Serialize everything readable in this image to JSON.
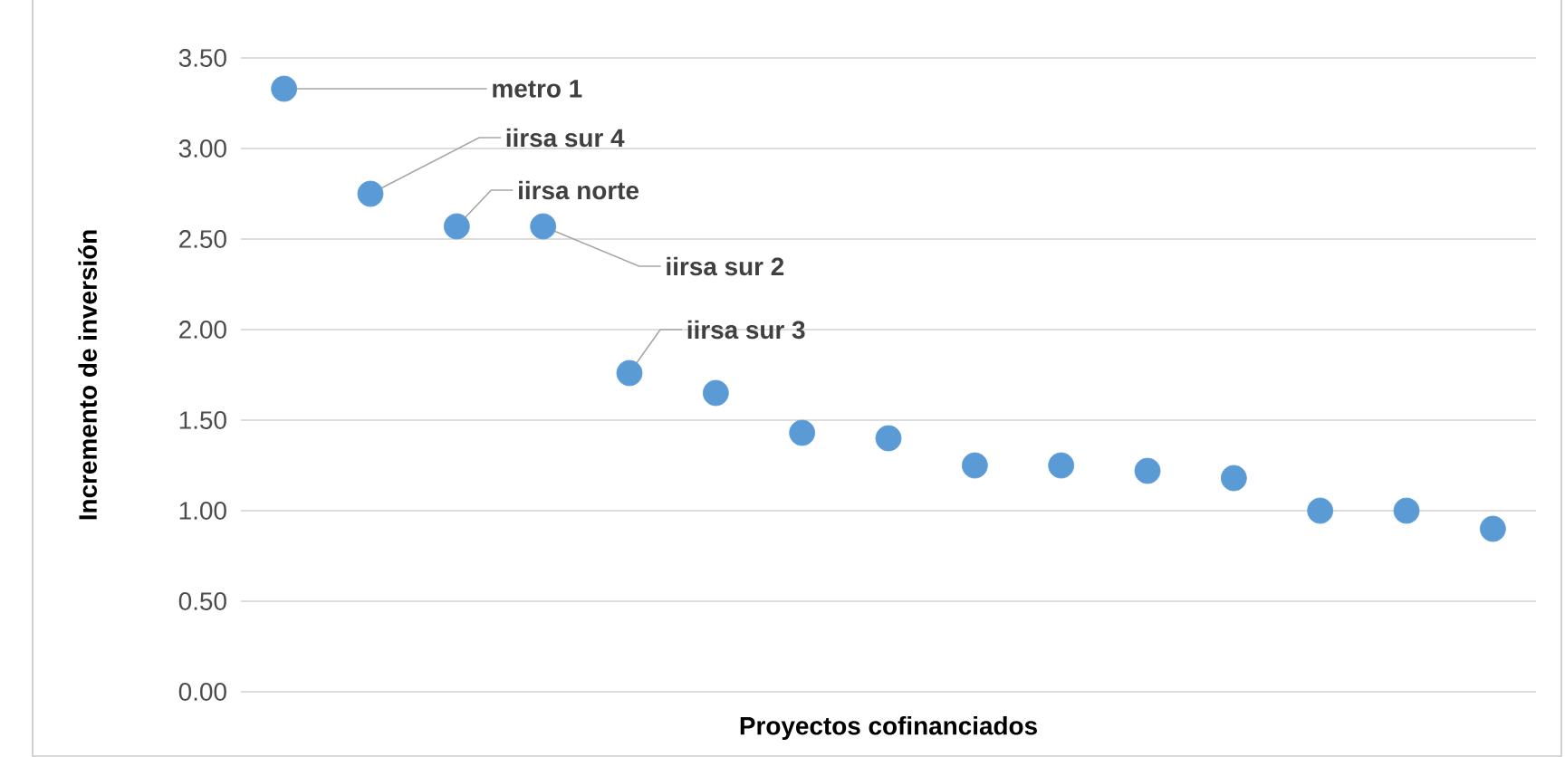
{
  "chart_data": {
    "type": "scatter",
    "xlabel": "Proyectos cofinanciados",
    "ylabel": "Incremento de inversión",
    "categories": [
      null,
      null,
      null,
      null,
      null,
      null,
      null,
      null,
      null,
      null,
      null,
      null,
      null,
      null,
      null
    ],
    "values": [
      3.33,
      2.75,
      2.57,
      2.57,
      1.76,
      1.65,
      1.43,
      1.4,
      1.25,
      1.25,
      1.22,
      1.18,
      1.0,
      1.0,
      0.9
    ],
    "color": "#5b9bd5",
    "marker": "circle",
    "ylim": [
      0,
      3.5
    ],
    "yticks": [
      {
        "value": 0,
        "label": "0.00"
      },
      {
        "value": 0.5,
        "label": "0.50"
      },
      {
        "value": 1,
        "label": "1.00"
      },
      {
        "value": 1.5,
        "label": "1.50"
      },
      {
        "value": 2,
        "label": "2.00"
      },
      {
        "value": 2.5,
        "label": "2.50"
      },
      {
        "value": 3,
        "label": "3.00"
      },
      {
        "value": 3.5,
        "label": "3.50"
      }
    ],
    "grid": "y",
    "tick_labels": "y",
    "annotations": [
      "metro 1",
      "iirsa sur 4",
      "iirsa norte",
      "iirsa sur 2",
      "iirsa sur 3"
    ]
  }
}
